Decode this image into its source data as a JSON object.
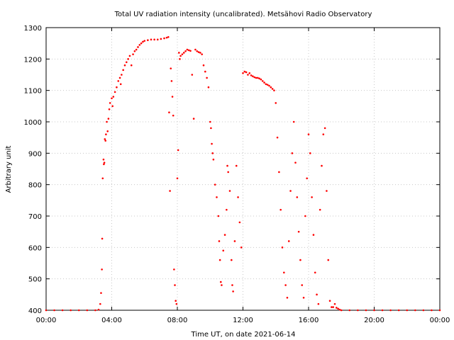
{
  "chart_data": {
    "type": "scatter",
    "title": "Total UV radiation intensity (uncalibrated). Metsähovi Radio Observatory",
    "xlabel": "Time UT, on date 2021-06-14",
    "ylabel": "Arbitrary unit",
    "x_unit": "hours UT",
    "xlim": [
      0,
      24
    ],
    "ylim": [
      400,
      1300
    ],
    "x_ticks": [
      {
        "value": 0,
        "label": "00:00"
      },
      {
        "value": 4,
        "label": "04:00"
      },
      {
        "value": 8,
        "label": "08:00"
      },
      {
        "value": 12,
        "label": "12:00"
      },
      {
        "value": 16,
        "label": "16:00"
      },
      {
        "value": 20,
        "label": "20:00"
      },
      {
        "value": 24,
        "label": "00:00"
      }
    ],
    "y_ticks": [
      400,
      500,
      600,
      700,
      800,
      900,
      1000,
      1100,
      1200,
      1300
    ],
    "grid": true,
    "marker_color": "#ff0000",
    "series": [
      {
        "points": [
          [
            0.0,
            400
          ],
          [
            0.5,
            400
          ],
          [
            1.0,
            400
          ],
          [
            1.5,
            400
          ],
          [
            2.0,
            400
          ],
          [
            2.5,
            400
          ],
          [
            3.0,
            400
          ],
          [
            3.2,
            402
          ],
          [
            3.3,
            420
          ],
          [
            3.35,
            455
          ],
          [
            3.4,
            530
          ],
          [
            3.42,
            628
          ],
          [
            3.45,
            820
          ],
          [
            3.5,
            880
          ],
          [
            3.52,
            865
          ],
          [
            3.55,
            870
          ],
          [
            3.58,
            945
          ],
          [
            3.62,
            940
          ],
          [
            3.65,
            960
          ],
          [
            3.7,
            1000
          ],
          [
            3.75,
            970
          ],
          [
            3.8,
            1010
          ],
          [
            3.85,
            1040
          ],
          [
            3.9,
            1060
          ],
          [
            4.0,
            1075
          ],
          [
            4.05,
            1050
          ],
          [
            4.1,
            1080
          ],
          [
            4.2,
            1095
          ],
          [
            4.3,
            1110
          ],
          [
            4.4,
            1130
          ],
          [
            4.5,
            1140
          ],
          [
            4.55,
            1120
          ],
          [
            4.6,
            1150
          ],
          [
            4.7,
            1165
          ],
          [
            4.8,
            1180
          ],
          [
            4.9,
            1190
          ],
          [
            5.0,
            1200
          ],
          [
            5.1,
            1210
          ],
          [
            5.2,
            1180
          ],
          [
            5.3,
            1215
          ],
          [
            5.4,
            1225
          ],
          [
            5.5,
            1230
          ],
          [
            5.6,
            1238
          ],
          [
            5.7,
            1245
          ],
          [
            5.8,
            1250
          ],
          [
            5.9,
            1255
          ],
          [
            6.0,
            1258
          ],
          [
            6.2,
            1260
          ],
          [
            6.4,
            1262
          ],
          [
            6.6,
            1262
          ],
          [
            6.8,
            1262
          ],
          [
            7.0,
            1264
          ],
          [
            7.2,
            1266
          ],
          [
            7.35,
            1268
          ],
          [
            7.45,
            1270
          ],
          [
            7.5,
            1030
          ],
          [
            7.55,
            780
          ],
          [
            7.6,
            1170
          ],
          [
            7.65,
            1130
          ],
          [
            7.7,
            1080
          ],
          [
            7.75,
            1020
          ],
          [
            7.8,
            530
          ],
          [
            7.85,
            480
          ],
          [
            7.9,
            430
          ],
          [
            7.95,
            420
          ],
          [
            8.0,
            820
          ],
          [
            8.05,
            910
          ],
          [
            8.1,
            1220
          ],
          [
            8.15,
            1200
          ],
          [
            8.2,
            1210
          ],
          [
            8.3,
            1215
          ],
          [
            8.4,
            1220
          ],
          [
            8.5,
            1225
          ],
          [
            8.6,
            1230
          ],
          [
            8.7,
            1228
          ],
          [
            8.8,
            1226
          ],
          [
            8.9,
            1150
          ],
          [
            9.0,
            1010
          ],
          [
            9.1,
            1230
          ],
          [
            9.2,
            1225
          ],
          [
            9.3,
            1222
          ],
          [
            9.4,
            1220
          ],
          [
            9.5,
            1215
          ],
          [
            9.6,
            1180
          ],
          [
            9.7,
            1160
          ],
          [
            9.8,
            1140
          ],
          [
            9.9,
            1110
          ],
          [
            10.0,
            1000
          ],
          [
            10.05,
            980
          ],
          [
            10.1,
            930
          ],
          [
            10.15,
            900
          ],
          [
            10.2,
            880
          ],
          [
            10.3,
            800
          ],
          [
            10.4,
            760
          ],
          [
            10.5,
            700
          ],
          [
            10.55,
            620
          ],
          [
            10.6,
            560
          ],
          [
            10.65,
            490
          ],
          [
            10.7,
            480
          ],
          [
            10.8,
            590
          ],
          [
            10.9,
            640
          ],
          [
            11.0,
            720
          ],
          [
            11.05,
            860
          ],
          [
            11.1,
            840
          ],
          [
            11.2,
            780
          ],
          [
            11.3,
            560
          ],
          [
            11.35,
            480
          ],
          [
            11.4,
            460
          ],
          [
            11.5,
            620
          ],
          [
            11.6,
            860
          ],
          [
            11.7,
            760
          ],
          [
            11.8,
            680
          ],
          [
            11.9,
            600
          ],
          [
            12.0,
            1155
          ],
          [
            12.1,
            1160
          ],
          [
            12.2,
            1158
          ],
          [
            12.3,
            1150
          ],
          [
            12.4,
            1155
          ],
          [
            12.5,
            1148
          ],
          [
            12.6,
            1145
          ],
          [
            12.7,
            1142
          ],
          [
            12.8,
            1140
          ],
          [
            12.9,
            1140
          ],
          [
            13.0,
            1138
          ],
          [
            13.1,
            1135
          ],
          [
            13.2,
            1130
          ],
          [
            13.3,
            1125
          ],
          [
            13.4,
            1120
          ],
          [
            13.5,
            1118
          ],
          [
            13.6,
            1115
          ],
          [
            13.7,
            1110
          ],
          [
            13.8,
            1105
          ],
          [
            13.9,
            1100
          ],
          [
            14.0,
            1060
          ],
          [
            14.1,
            950
          ],
          [
            14.2,
            840
          ],
          [
            14.3,
            720
          ],
          [
            14.4,
            600
          ],
          [
            14.5,
            520
          ],
          [
            14.6,
            480
          ],
          [
            14.7,
            440
          ],
          [
            14.8,
            620
          ],
          [
            14.9,
            780
          ],
          [
            15.0,
            900
          ],
          [
            15.1,
            1000
          ],
          [
            15.2,
            870
          ],
          [
            15.3,
            760
          ],
          [
            15.4,
            650
          ],
          [
            15.5,
            560
          ],
          [
            15.6,
            480
          ],
          [
            15.7,
            440
          ],
          [
            15.8,
            700
          ],
          [
            15.9,
            820
          ],
          [
            16.0,
            960
          ],
          [
            16.1,
            900
          ],
          [
            16.2,
            760
          ],
          [
            16.3,
            640
          ],
          [
            16.4,
            520
          ],
          [
            16.5,
            450
          ],
          [
            16.6,
            420
          ],
          [
            16.7,
            720
          ],
          [
            16.8,
            860
          ],
          [
            16.9,
            960
          ],
          [
            17.0,
            980
          ],
          [
            17.1,
            780
          ],
          [
            17.2,
            560
          ],
          [
            17.3,
            430
          ],
          [
            17.4,
            410
          ],
          [
            17.5,
            410
          ],
          [
            17.6,
            420
          ],
          [
            17.7,
            408
          ],
          [
            17.8,
            405
          ],
          [
            17.9,
            402
          ],
          [
            18.0,
            400
          ],
          [
            18.5,
            400
          ],
          [
            19.0,
            400
          ],
          [
            19.5,
            400
          ],
          [
            20.0,
            400
          ],
          [
            20.5,
            400
          ],
          [
            21.0,
            400
          ],
          [
            21.5,
            400
          ],
          [
            22.0,
            400
          ],
          [
            22.5,
            400
          ],
          [
            23.0,
            400
          ],
          [
            23.5,
            400
          ],
          [
            24.0,
            400
          ]
        ]
      }
    ]
  }
}
